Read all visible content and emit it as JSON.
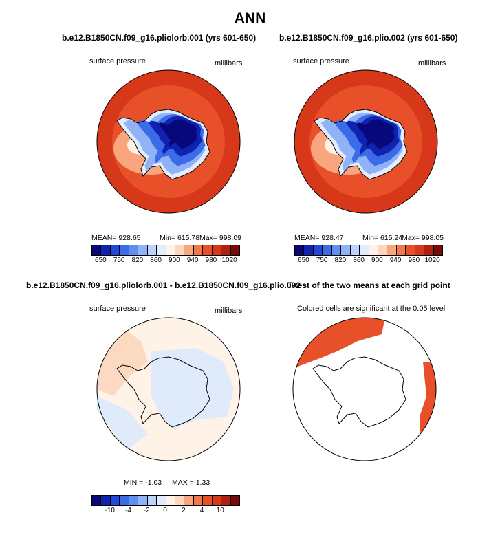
{
  "title": "ANN",
  "panels": [
    {
      "title": "b.e12.B1850CN.f09_g16.pliolorb.001 (yrs 601-650)",
      "left_label": "surface pressure",
      "right_label": "millibars",
      "stats": {
        "mean": "MEAN=  928.65",
        "min": "Min=  615.78",
        "max": "Max=  998.09"
      }
    },
    {
      "title": "b.e12.B1850CN.f09_g16.plio.002 (yrs 601-650)",
      "left_label": "surface pressure",
      "right_label": "millibars",
      "stats": {
        "mean": "MEAN=  928.47",
        "min": "Min=  615.24",
        "max": "Max=  998.05"
      }
    },
    {
      "title": "b.e12.B1850CN.f09_g16.pliolorb.001 - b.e12.B1850CN.f09_g16.plio.002",
      "left_label": "surface pressure",
      "right_label": "millibars",
      "stats": {
        "min": "MIN =   -1.03",
        "max": "MAX =     1.33"
      }
    },
    {
      "title": "T-test of the two means at each grid point",
      "left_label": "Colored cells are significant at the 0.05 level"
    }
  ],
  "colorbar_top": {
    "colors": [
      "#08087a",
      "#0f23b0",
      "#2148d8",
      "#3b6be6",
      "#5e8ef0",
      "#8fb3f6",
      "#bcd4f9",
      "#e3ecfc",
      "#fff3e8",
      "#fcd6bd",
      "#f9a67f",
      "#f3774a",
      "#e8502a",
      "#d8381a",
      "#b02012",
      "#7a0a08"
    ],
    "labels": [
      "650",
      "750",
      "820",
      "860",
      "900",
      "940",
      "980",
      "1020"
    ]
  },
  "colorbar_diff": {
    "colors": [
      "#08087a",
      "#0f23b0",
      "#2148d8",
      "#3b6be6",
      "#5e8ef0",
      "#8fb3f6",
      "#bcd4f9",
      "#e3ecfc",
      "#fff3e8",
      "#fcd6bd",
      "#f9a67f",
      "#f3774a",
      "#e8502a",
      "#d8381a",
      "#b02012",
      "#7a0a08"
    ],
    "labels": [
      "-10",
      "-4",
      "-2",
      "0",
      "2",
      "4",
      "10"
    ]
  },
  "chart_data": [
    {
      "type": "heatmap",
      "projection": "south polar stereographic",
      "variable": "surface pressure",
      "units": "millibars",
      "mean": 928.65,
      "min": 615.78,
      "max": 998.09,
      "levels": [
        650,
        700,
        750,
        800,
        820,
        840,
        860,
        880,
        900,
        920,
        940,
        960,
        980,
        1000,
        1020
      ]
    },
    {
      "type": "heatmap",
      "projection": "south polar stereographic",
      "variable": "surface pressure",
      "units": "millibars",
      "mean": 928.47,
      "min": 615.24,
      "max": 998.05,
      "levels": [
        650,
        700,
        750,
        800,
        820,
        840,
        860,
        880,
        900,
        920,
        940,
        960,
        980,
        1000,
        1020
      ]
    },
    {
      "type": "heatmap",
      "projection": "south polar stereographic",
      "variable": "surface pressure difference",
      "units": "millibars",
      "min": -1.03,
      "max": 1.33,
      "levels": [
        -10,
        -8,
        -6,
        -4,
        -3,
        -2,
        -1,
        0,
        1,
        2,
        3,
        4,
        6,
        8,
        10
      ]
    },
    {
      "type": "heatmap",
      "projection": "south polar stereographic",
      "significance_level": 0.05
    }
  ]
}
